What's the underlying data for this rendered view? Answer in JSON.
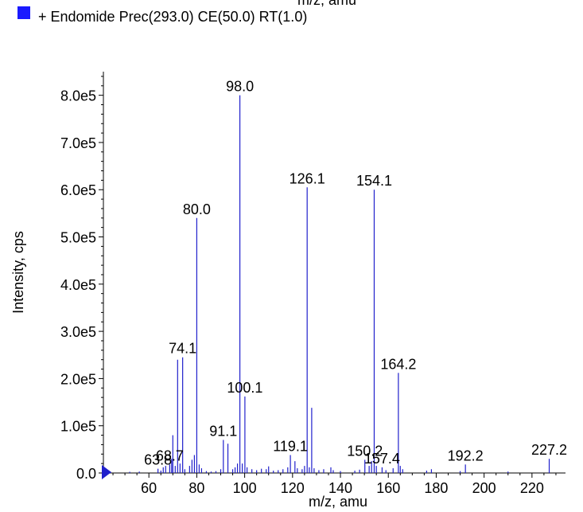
{
  "header_xlabel": "m/z, amu",
  "legend": {
    "label": "+ Endomide Prec(293.0) CE(50.0) RT(1.0)",
    "color": "#1a1aff"
  },
  "chart_data": {
    "type": "bar",
    "xlabel": "m/z, amu",
    "ylabel": "Intensity, cps",
    "xlim": [
      41,
      234
    ],
    "ylim": [
      0,
      850000
    ],
    "x_ticks": [
      "60",
      "80",
      "100",
      "120",
      "140",
      "160",
      "180",
      "200",
      "220"
    ],
    "y_ticks": [
      "0.0",
      "1.0e5",
      "2.0e5",
      "3.0e5",
      "4.0e5",
      "5.0e5",
      "6.0e5",
      "7.0e5",
      "8.0e5"
    ],
    "grid": false,
    "bar_color": "#2020cc",
    "peaks": [
      {
        "x": 44,
        "y": 2000
      },
      {
        "x": 52,
        "y": 2500
      },
      {
        "x": 56,
        "y": 3000
      },
      {
        "x": 63.8,
        "y": 9000
      },
      {
        "x": 65,
        "y": 5000
      },
      {
        "x": 66,
        "y": 12000
      },
      {
        "x": 67,
        "y": 15000
      },
      {
        "x": 68.7,
        "y": 18000
      },
      {
        "x": 69.5,
        "y": 30000
      },
      {
        "x": 70,
        "y": 80000
      },
      {
        "x": 71,
        "y": 15000
      },
      {
        "x": 72,
        "y": 240000
      },
      {
        "x": 73,
        "y": 20000
      },
      {
        "x": 74.1,
        "y": 245000
      },
      {
        "x": 75,
        "y": 8000
      },
      {
        "x": 77,
        "y": 15000
      },
      {
        "x": 78,
        "y": 28000
      },
      {
        "x": 79,
        "y": 38000
      },
      {
        "x": 80.0,
        "y": 540000
      },
      {
        "x": 81,
        "y": 18000
      },
      {
        "x": 82,
        "y": 10000
      },
      {
        "x": 84,
        "y": 4000
      },
      {
        "x": 86,
        "y": 3000
      },
      {
        "x": 88,
        "y": 4000
      },
      {
        "x": 90,
        "y": 8000
      },
      {
        "x": 91.1,
        "y": 70000
      },
      {
        "x": 93,
        "y": 62000
      },
      {
        "x": 95,
        "y": 8000
      },
      {
        "x": 96,
        "y": 12000
      },
      {
        "x": 97,
        "y": 20000
      },
      {
        "x": 98.0,
        "y": 800000
      },
      {
        "x": 99,
        "y": 20000
      },
      {
        "x": 100.1,
        "y": 162000
      },
      {
        "x": 101,
        "y": 12000
      },
      {
        "x": 103,
        "y": 8000
      },
      {
        "x": 105,
        "y": 6000
      },
      {
        "x": 107,
        "y": 9000
      },
      {
        "x": 109,
        "y": 8000
      },
      {
        "x": 110,
        "y": 14000
      },
      {
        "x": 112,
        "y": 5000
      },
      {
        "x": 114,
        "y": 6000
      },
      {
        "x": 116,
        "y": 8000
      },
      {
        "x": 118,
        "y": 12000
      },
      {
        "x": 119.1,
        "y": 38000
      },
      {
        "x": 121,
        "y": 25000
      },
      {
        "x": 122,
        "y": 10000
      },
      {
        "x": 124,
        "y": 8000
      },
      {
        "x": 125,
        "y": 15000
      },
      {
        "x": 126.1,
        "y": 605000
      },
      {
        "x": 127,
        "y": 12000
      },
      {
        "x": 128,
        "y": 138000
      },
      {
        "x": 129,
        "y": 10000
      },
      {
        "x": 131,
        "y": 6000
      },
      {
        "x": 133,
        "y": 8000
      },
      {
        "x": 136,
        "y": 12000
      },
      {
        "x": 137,
        "y": 6000
      },
      {
        "x": 140,
        "y": 4000
      },
      {
        "x": 146,
        "y": 5000
      },
      {
        "x": 148,
        "y": 7000
      },
      {
        "x": 150.2,
        "y": 28000
      },
      {
        "x": 152,
        "y": 15000
      },
      {
        "x": 153,
        "y": 25000
      },
      {
        "x": 154.1,
        "y": 600000
      },
      {
        "x": 155,
        "y": 15000
      },
      {
        "x": 157.4,
        "y": 12000
      },
      {
        "x": 159,
        "y": 6000
      },
      {
        "x": 162,
        "y": 10000
      },
      {
        "x": 164.2,
        "y": 212000
      },
      {
        "x": 165,
        "y": 15000
      },
      {
        "x": 166,
        "y": 8000
      },
      {
        "x": 176,
        "y": 5000
      },
      {
        "x": 178,
        "y": 8000
      },
      {
        "x": 190,
        "y": 4000
      },
      {
        "x": 192.2,
        "y": 18000
      },
      {
        "x": 210,
        "y": 3000
      },
      {
        "x": 227.2,
        "y": 30000
      }
    ],
    "annotations": [
      {
        "text": "98.0",
        "x": 98.0,
        "y": 800000
      },
      {
        "text": "126.1",
        "x": 126.1,
        "y": 605000
      },
      {
        "text": "154.1",
        "x": 154.1,
        "y": 600000
      },
      {
        "text": "80.0",
        "x": 80.0,
        "y": 540000
      },
      {
        "text": "74.1",
        "x": 74.1,
        "y": 245000
      },
      {
        "text": "164.2",
        "x": 164.2,
        "y": 212000
      },
      {
        "text": "100.1",
        "x": 100.1,
        "y": 162000
      },
      {
        "text": "91.1",
        "x": 91.1,
        "y": 70000
      },
      {
        "text": "119.1",
        "x": 119.1,
        "y": 38000
      },
      {
        "text": "150.2",
        "x": 150.2,
        "y": 28000
      },
      {
        "text": "227.2",
        "x": 227.2,
        "y": 30000
      },
      {
        "text": "192.2",
        "x": 192.2,
        "y": 18000
      },
      {
        "text": "157.4",
        "x": 157.4,
        "y": 12000
      },
      {
        "text": "68.7",
        "x": 68.7,
        "y": 18000
      },
      {
        "text": "63.8",
        "x": 63.8,
        "y": 9000
      }
    ],
    "marker": {
      "shape": "triangle-right",
      "color": "#2020cc",
      "y": 0
    }
  }
}
